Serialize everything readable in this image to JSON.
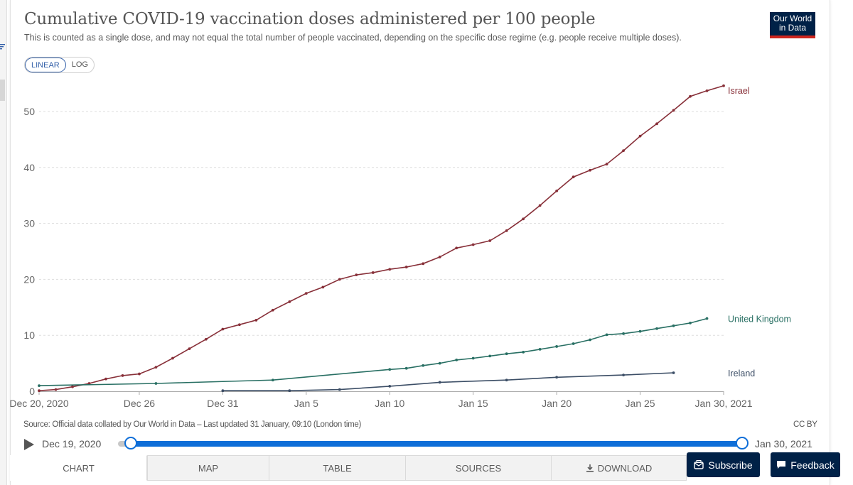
{
  "header": {
    "title": "Cumulative COVID-19 vaccination doses administered per 100 people",
    "subtitle": "This is counted as a single dose, and may not equal the total number of people vaccinated, depending on the specific dose regime (e.g. people receive multiple doses).",
    "logo_line1": "Our World",
    "logo_line2": "in Data"
  },
  "controls": {
    "linear_label": "LINEAR",
    "log_label": "LOG"
  },
  "chart_data": {
    "type": "line",
    "title": "Cumulative COVID-19 vaccination doses administered per 100 people",
    "xlabel": "",
    "ylabel": "",
    "x_domain_day_offsets": [
      0,
      41
    ],
    "ylim": [
      0,
      55
    ],
    "y_ticks": [
      0,
      10,
      20,
      30,
      40,
      50
    ],
    "x_ticks": [
      {
        "day": 0,
        "label": "Dec 20, 2020"
      },
      {
        "day": 6,
        "label": "Dec 26"
      },
      {
        "day": 11,
        "label": "Dec 31"
      },
      {
        "day": 16,
        "label": "Jan 5"
      },
      {
        "day": 21,
        "label": "Jan 10"
      },
      {
        "day": 26,
        "label": "Jan 15"
      },
      {
        "day": 31,
        "label": "Jan 20"
      },
      {
        "day": 36,
        "label": "Jan 25"
      },
      {
        "day": 41,
        "label": "Jan 30, 2021"
      }
    ],
    "grid": true,
    "series": [
      {
        "name": "Israel",
        "color": "#883039",
        "points": [
          [
            0,
            0.1
          ],
          [
            1,
            0.3
          ],
          [
            2,
            0.8
          ],
          [
            3,
            1.4
          ],
          [
            4,
            2.2
          ],
          [
            5,
            2.8
          ],
          [
            6,
            3.1
          ],
          [
            7,
            4.3
          ],
          [
            8,
            5.9
          ],
          [
            9,
            7.6
          ],
          [
            10,
            9.3
          ],
          [
            11,
            11.1
          ],
          [
            12,
            11.9
          ],
          [
            13,
            12.7
          ],
          [
            14,
            14.5
          ],
          [
            15,
            16.0
          ],
          [
            16,
            17.5
          ],
          [
            17,
            18.6
          ],
          [
            18,
            20.0
          ],
          [
            19,
            20.8
          ],
          [
            20,
            21.2
          ],
          [
            21,
            21.8
          ],
          [
            22,
            22.2
          ],
          [
            23,
            22.8
          ],
          [
            24,
            24.0
          ],
          [
            25,
            25.6
          ],
          [
            26,
            26.2
          ],
          [
            27,
            26.9
          ],
          [
            28,
            28.7
          ],
          [
            29,
            30.8
          ],
          [
            30,
            33.2
          ],
          [
            31,
            35.8
          ],
          [
            32,
            38.3
          ],
          [
            33,
            39.5
          ],
          [
            34,
            40.6
          ],
          [
            35,
            43.0
          ],
          [
            36,
            45.6
          ],
          [
            37,
            47.8
          ],
          [
            38,
            50.2
          ],
          [
            39,
            52.7
          ],
          [
            40,
            53.7
          ],
          [
            41,
            54.6
          ]
        ],
        "label_offset": 6
      },
      {
        "name": "United Kingdom",
        "color": "#286f63",
        "points": [
          [
            0,
            1.0
          ],
          [
            7,
            1.4
          ],
          [
            14,
            2.0
          ],
          [
            21,
            3.9
          ],
          [
            22,
            4.1
          ],
          [
            23,
            4.6
          ],
          [
            24,
            5.0
          ],
          [
            25,
            5.6
          ],
          [
            26,
            5.9
          ],
          [
            27,
            6.3
          ],
          [
            28,
            6.7
          ],
          [
            29,
            7.0
          ],
          [
            30,
            7.5
          ],
          [
            31,
            8.0
          ],
          [
            32,
            8.5
          ],
          [
            33,
            9.2
          ],
          [
            34,
            10.1
          ],
          [
            35,
            10.3
          ],
          [
            36,
            10.7
          ],
          [
            37,
            11.2
          ],
          [
            38,
            11.7
          ],
          [
            39,
            12.2
          ],
          [
            40,
            13.0
          ]
        ],
        "label_offset": 0
      },
      {
        "name": "Ireland",
        "color": "#3c4e66",
        "points": [
          [
            11,
            0.1
          ],
          [
            15,
            0.1
          ],
          [
            18,
            0.3
          ],
          [
            21,
            0.9
          ],
          [
            24,
            1.6
          ],
          [
            28,
            2.0
          ],
          [
            31,
            2.5
          ],
          [
            35,
            2.9
          ],
          [
            38,
            3.3
          ]
        ],
        "label_offset": 0
      }
    ]
  },
  "footer": {
    "source": "Source: Official data collated by Our World in Data – Last updated 31 January, 09:10 (London time)",
    "license": "CC BY"
  },
  "timeline": {
    "start_date": "Dec 19, 2020",
    "end_date": "Jan 30, 2021",
    "range_start_fraction": 0,
    "range_end_fraction": 1
  },
  "tabs": [
    {
      "label": "CHART",
      "active": true
    },
    {
      "label": "MAP",
      "active": false
    },
    {
      "label": "TABLE",
      "active": false
    },
    {
      "label": "SOURCES",
      "active": false
    },
    {
      "label": "DOWNLOAD",
      "active": false
    }
  ],
  "actions": {
    "subscribe_label": "Subscribe",
    "feedback_label": "Feedback"
  }
}
